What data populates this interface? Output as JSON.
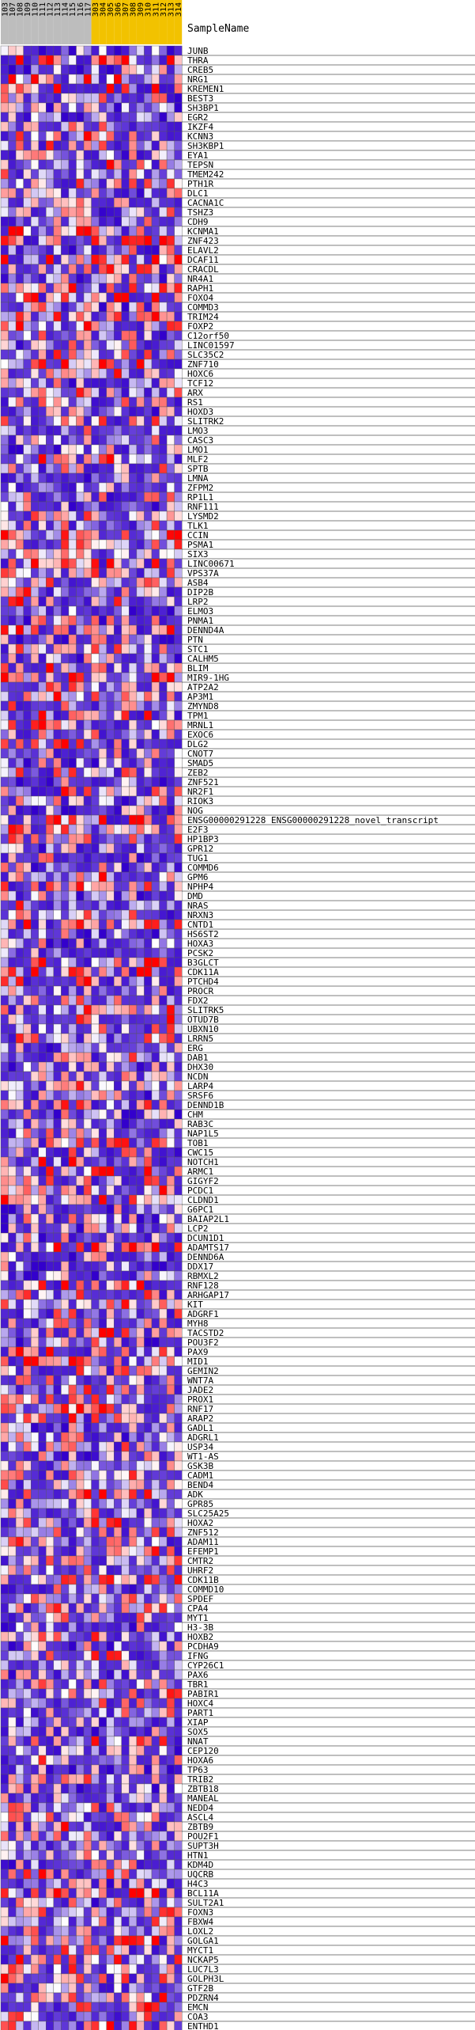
{
  "chart_data": {
    "type": "heatmap",
    "header_label": "SampleName",
    "columns": [
      {
        "label": "103",
        "group": "grey"
      },
      {
        "label": "107",
        "group": "grey"
      },
      {
        "label": "108",
        "group": "grey"
      },
      {
        "label": "109",
        "group": "grey"
      },
      {
        "label": "110",
        "group": "grey"
      },
      {
        "label": "111",
        "group": "grey"
      },
      {
        "label": "112",
        "group": "grey"
      },
      {
        "label": "113",
        "group": "grey"
      },
      {
        "label": "114",
        "group": "grey"
      },
      {
        "label": "115",
        "group": "grey"
      },
      {
        "label": "116",
        "group": "grey"
      },
      {
        "label": "117",
        "group": "grey"
      },
      {
        "label": "303",
        "group": "gold"
      },
      {
        "label": "304",
        "group": "gold"
      },
      {
        "label": "305",
        "group": "gold"
      },
      {
        "label": "306",
        "group": "gold"
      },
      {
        "label": "307",
        "group": "gold"
      },
      {
        "label": "308",
        "group": "gold"
      },
      {
        "label": "309",
        "group": "gold"
      },
      {
        "label": "310",
        "group": "gold"
      },
      {
        "label": "311",
        "group": "gold"
      },
      {
        "label": "312",
        "group": "gold"
      },
      {
        "label": "313",
        "group": "gold"
      },
      {
        "label": "314",
        "group": "gold"
      }
    ],
    "group_colors": {
      "grey": "#bdbdbd",
      "gold": "#f2c200"
    },
    "scale_colors": {
      "low": "#3300cc",
      "mid": "#ffffff",
      "high": "#ff0000"
    },
    "rows": [
      "JUNB",
      "THRA",
      "CREB5",
      "NRG1",
      "KREMEN1",
      "BEST3",
      "SH3BP1",
      "EGR2",
      "IKZF4",
      "KCNN3",
      "SH3KBP1",
      "EYA1",
      "TEPSN",
      "TMEM242",
      "PTH1R",
      "DLC1",
      "CACNA1C",
      "TSHZ3",
      "CDH9",
      "KCNMA1",
      "ZNF423",
      "ELAVL2",
      "DCAF11",
      "CRACDL",
      "NR4A1",
      "RAPH1",
      "FOXO4",
      "COMMD3",
      "TRIM24",
      "FOXP2",
      "C12orf50",
      "LINC01597",
      "SLC35C2",
      "ZNF710",
      "HOXC6",
      "TCF12",
      "ARX",
      "RS1",
      "HOXD3",
      "SLITRK2",
      "LMO3",
      "CASC3",
      "LMO1",
      "MLF2",
      "SPTB",
      "LMNA",
      "ZFPM2",
      "RP1L1",
      "RNF111",
      "LYSMD2",
      "TLK1",
      "CCIN",
      "PSMA1",
      "SIX3",
      "LINC00671",
      "VPS37A",
      "ASB4",
      "DIP2B",
      "LRP2",
      "ELMO3",
      "PNMA1",
      "DENND4A",
      "PTN",
      "STC1",
      "CALHM5",
      "BLIM",
      "MIR9-1HG",
      "ATP2A2",
      "AP3M1",
      "ZMYND8",
      "TPM1",
      "MRNL1",
      "EXOC6",
      "DLG2",
      "CNOT7",
      "SMAD5",
      "ZEB2",
      "ZNF521",
      "NR2F1",
      "RIOK3",
      "NOG",
      "ENSG00000291228",
      "E2F3",
      "HP1BP3",
      "GPR12",
      "TUG1",
      "COMMD6",
      "GPM6",
      "NPHP4",
      "DMD",
      "NRAS",
      "NRXN3",
      "CNTD1",
      "HS6ST2",
      "HOXA3",
      "PCSK2",
      "B3GLCT",
      "CDK11A",
      "PTCHD4",
      "PROCR",
      "FDX2",
      "SLITRK5",
      "OTUD7B",
      "UBXN10",
      "LRRN5",
      "ERG",
      "DAB1",
      "DHX30",
      "NCDN",
      "LARP4",
      "SRSF6",
      "DENND1B",
      "CHM",
      "RAB3C",
      "NAP1L5",
      "TOB1",
      "CWC15",
      "NOTCH1",
      "ARMC1",
      "GIGYF2",
      "PCDC1",
      "CLDND1",
      "G6PC1",
      "BAIAP2L1",
      "LCP2",
      "DCUN1D1",
      "ADAMTS17",
      "DENND6A",
      "DDX17",
      "RBMXL2",
      "RNF128",
      "ARHGAP17",
      "KIT",
      "ADGRF1",
      "MYH8",
      "TACSTD2",
      "POU3F2",
      "PAX9",
      "MID1",
      "GEMIN2",
      "WNT7A",
      "JADE2",
      "PROX1",
      "RNF17",
      "ARAP2",
      "GADL1",
      "ADGRL1",
      "USP34",
      "WT1-AS",
      "GSK3B",
      "CADM1",
      "BEND4",
      "ADK",
      "GPR85",
      "SLC25A25",
      "HOXA2",
      "ZNF512",
      "ADAM11",
      "EFEMP1",
      "CMTR2",
      "UHRF2",
      "CDK11B",
      "COMMD10",
      "SPDEF",
      "CPA4",
      "MYT1",
      "H3-3B",
      "HOXB2",
      "PCDHA9",
      "IFNG",
      "CYP26C1",
      "PAX6",
      "TBR1",
      "PABIR1",
      "HOXC4",
      "PART1",
      "XIAP",
      "SOX5",
      "NNAT",
      "CEP120",
      "HOXA6",
      "TP63",
      "TRIB2",
      "ZBTB18",
      "MANEAL",
      "NEDD4",
      "ASCL4",
      "ZBTB9",
      "POU2F1",
      "SUPT3H",
      "HTN1",
      "KDM4D",
      "UQCRB",
      "H4C3",
      "BCL11A",
      "SULT2A1",
      "FOXN3",
      "FBXW4",
      "LOXL2",
      "GOLGA1",
      "MYCT1",
      "NCKAP5",
      "LUC7L3",
      "GOLPH3L",
      "GTF2B",
      "PDZRN4",
      "EMCN",
      "COA3",
      "ENTHD1"
    ],
    "row_annotations": {
      "ENSG00000291228": "ENSG00000291228_novel_transcript"
    },
    "title": "",
    "xlabel": "",
    "ylabel": ""
  }
}
